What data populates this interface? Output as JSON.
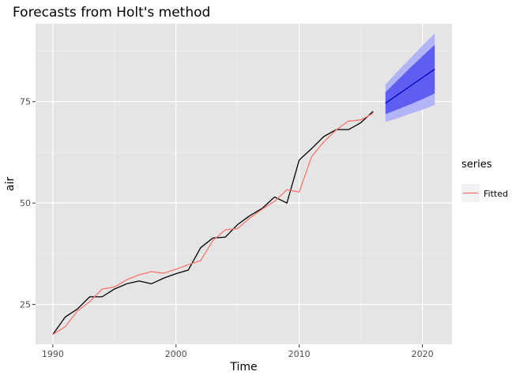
{
  "chart_data": {
    "type": "line",
    "title": "Forecasts from Holt's method",
    "xlabel": "Time",
    "ylabel": "air",
    "xlim": [
      1988.6,
      2022.4
    ],
    "ylim": [
      15.2,
      94.2
    ],
    "x_ticks": [
      1990,
      2000,
      2010,
      2020
    ],
    "x_tick_labels": [
      "1990",
      "2000",
      "2010",
      "2020"
    ],
    "y_ticks": [
      25,
      50,
      75
    ],
    "y_tick_labels": [
      "25",
      "50",
      "75"
    ],
    "grid": true,
    "legend": {
      "title": "series",
      "placement": "right",
      "entries": [
        {
          "label": "Fitted",
          "color": "#F8766D"
        }
      ]
    },
    "series": [
      {
        "kind": "observed",
        "color": "#000000",
        "x": [
          1990,
          1991,
          1992,
          1993,
          1994,
          1995,
          1996,
          1997,
          1998,
          1999,
          2000,
          2001,
          2002,
          2003,
          2004,
          2005,
          2006,
          2007,
          2008,
          2009,
          2010,
          2011,
          2012,
          2013,
          2014,
          2015,
          2016
        ],
        "values": [
          17.6,
          21.9,
          23.9,
          26.9,
          26.9,
          28.8,
          30.1,
          30.8,
          30.1,
          31.5,
          32.6,
          33.5,
          39.0,
          41.4,
          41.6,
          44.7,
          46.9,
          48.7,
          51.5,
          50.0,
          60.6,
          63.4,
          66.4,
          68.1,
          68.1,
          69.8,
          72.6
        ]
      },
      {
        "kind": "fitted",
        "name": "Fitted",
        "color": "#F8766D",
        "x": [
          1990,
          1991,
          1992,
          1993,
          1994,
          1995,
          1996,
          1997,
          1998,
          1999,
          2000,
          2001,
          2002,
          2003,
          2004,
          2005,
          2006,
          2007,
          2008,
          2009,
          2010,
          2011,
          2012,
          2013,
          2014,
          2015,
          2016
        ],
        "values": [
          17.6,
          19.5,
          23.4,
          25.7,
          28.8,
          29.3,
          31.1,
          32.3,
          33.1,
          32.7,
          33.7,
          34.8,
          35.8,
          40.8,
          43.4,
          43.7,
          46.3,
          48.5,
          50.4,
          53.3,
          52.7,
          61.4,
          65.1,
          68.0,
          70.2,
          70.5,
          72.1
        ]
      },
      {
        "kind": "forecast",
        "color": "#0000CC",
        "x": [
          2017,
          2018,
          2019,
          2020,
          2021
        ],
        "values": [
          74.6,
          76.7,
          78.8,
          80.9,
          83.0
        ],
        "lo80": [
          71.9,
          73.1,
          74.3,
          75.6,
          77.0
        ],
        "hi80": [
          77.3,
          80.3,
          83.3,
          86.2,
          89.0
        ],
        "lo95": [
          70.0,
          70.9,
          72.0,
          73.0,
          74.2
        ],
        "hi95": [
          79.2,
          82.5,
          85.6,
          88.8,
          91.8
        ],
        "band80_color": "#5E5EF0",
        "band95_color": "#B3B3F7"
      }
    ]
  },
  "colors": {
    "panel_background": "#E5E5E5",
    "grid_major": "#FFFFFF",
    "grid_minor": "#F2F2F2",
    "tick_mark": "#333333",
    "legend_key_background": "#F2F2F2"
  }
}
